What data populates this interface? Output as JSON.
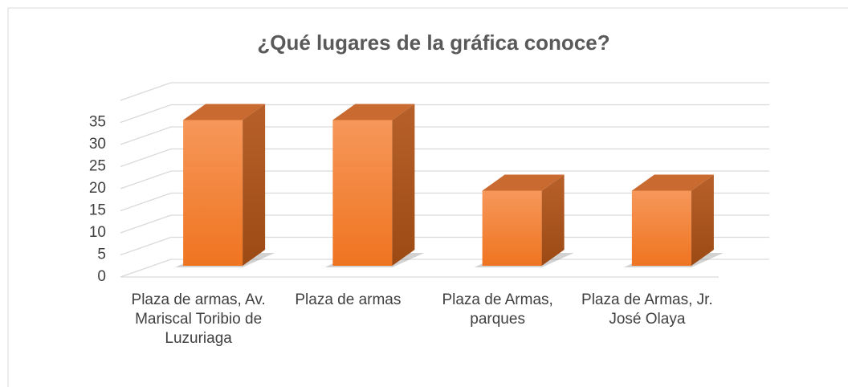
{
  "chart_data": {
    "type": "bar3d",
    "title": "¿Qué lugares de la gráfica conoce?",
    "categories": [
      "Plaza de armas, Av. Mariscal Toribio de Luzuriaga",
      "Plaza de armas",
      "Plaza de Armas, parques",
      "Plaza de Armas, Jr. José Olaya"
    ],
    "values": [
      33,
      33,
      17,
      17
    ],
    "color": "#ee7a2e",
    "ylim": [
      0,
      40
    ],
    "yticks": [
      0,
      5,
      10,
      15,
      20,
      25,
      30,
      35
    ],
    "grid": true
  }
}
